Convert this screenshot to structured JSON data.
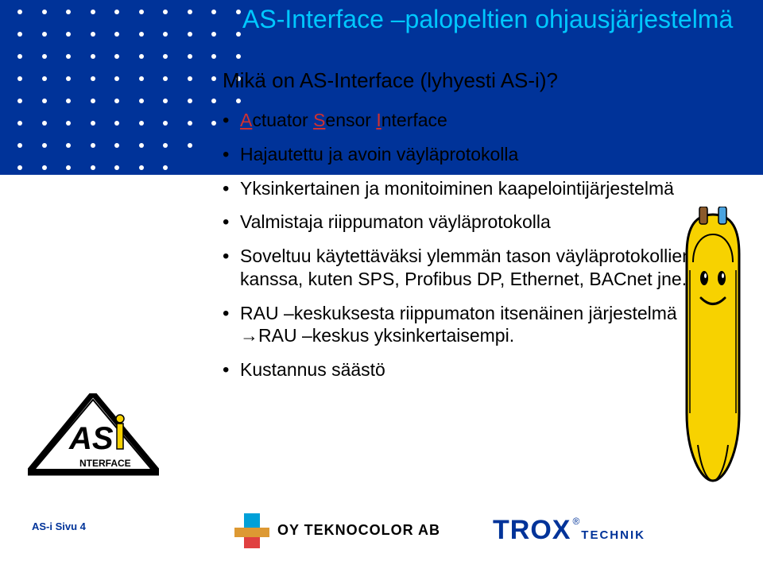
{
  "slide": {
    "title": "AS-Interface –palopeltien ohjausjärjestelmä",
    "subtitle": "Mikä on AS-Interface (lyhyesti AS-i)?",
    "dot_grid": {
      "cols": 10,
      "rows_full": 5,
      "staircase_rows": 9
    },
    "bullets": [
      {
        "parts": [
          {
            "t": "A",
            "cls": "u red"
          },
          {
            "t": "ctuator "
          },
          {
            "t": "S",
            "cls": "u red"
          },
          {
            "t": "ensor "
          },
          {
            "t": "I",
            "cls": "u red"
          },
          {
            "t": "nterface"
          }
        ]
      },
      {
        "parts": [
          {
            "t": "Hajautettu ja avoin väyläprotokolla"
          }
        ]
      },
      {
        "parts": [
          {
            "t": "Yksinkertainen ja monitoiminen kaapelointijärjestelmä"
          }
        ]
      },
      {
        "parts": [
          {
            "t": "Valmistaja riippumaton väyläprotokolla"
          }
        ]
      },
      {
        "parts": [
          {
            "t": "Soveltuu käytettäväksi ylemmän tason väyläprotokollien kanssa, kuten SPS, Profibus DP, Ethernet, BACnet jne."
          }
        ]
      },
      {
        "parts": [
          {
            "t": "RAU –keskuksesta riippumaton itsenäinen järjestelmä\n"
          },
          {
            "t": "→",
            "cls": "arrow"
          },
          {
            "t": "RAU –keskus yksinkertaisempi."
          }
        ]
      },
      {
        "parts": [
          {
            "t": "Kustannus säästö"
          }
        ]
      }
    ],
    "footer": "AS-i  Sivu 4",
    "logos": {
      "asi_label": "NTERFACE",
      "teknocolor": "OY TEKNOCOLOR AB",
      "trox": "TROX",
      "trox_sub": "TECHNIK"
    },
    "colors": {
      "band": "#003399",
      "title": "#00c8ff",
      "cable_body": "#f7d200",
      "cable_outline": "#000000"
    }
  }
}
